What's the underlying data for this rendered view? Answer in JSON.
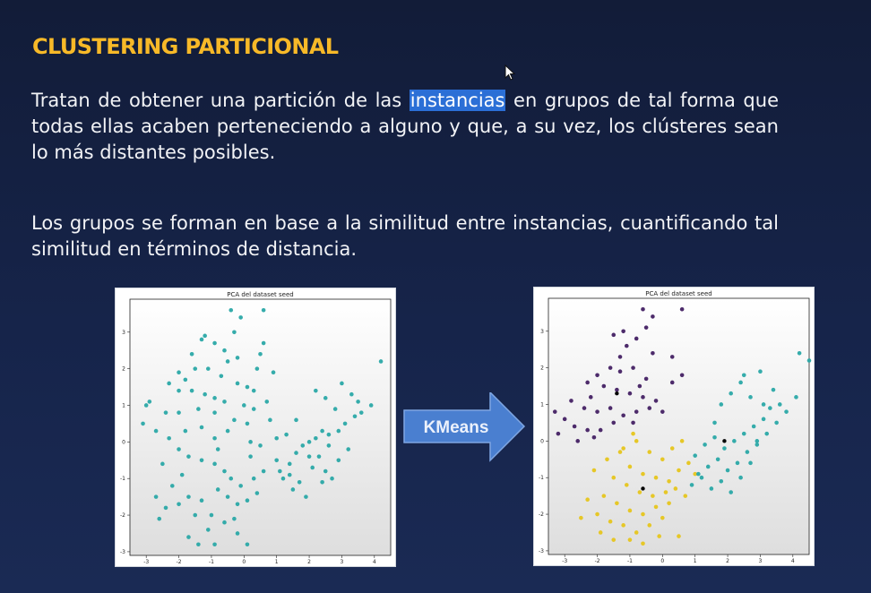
{
  "slide": {
    "title": "CLUSTERING PARTICIONAL",
    "p1_before": "Tratan de obtener una partición de las ",
    "p1_highlight": "instancias",
    "p1_after": " en grupos de tal forma que todas ellas acaben perteneciendo a alguno y que, a su vez, los clústeres sean lo más distantes posibles.",
    "p2": "Los grupos se forman en base a la similitud entre instancias, cuantificando tal similitud en términos de distancia.",
    "arrow_label": "KMeans"
  },
  "colors": {
    "title": "#f7b928",
    "highlight": "#2b6fd6",
    "arrow": "#4a7fd0",
    "teal": "#2aa8a6",
    "purple": "#432063",
    "yellow": "#e6c51c",
    "centroid": "#000000"
  },
  "chart_data": [
    {
      "type": "scatter",
      "title": "PCA del dataset seed",
      "xlim": [
        -3.5,
        4.5
      ],
      "ylim": [
        -3.1,
        3.9
      ],
      "xticks": [
        -3,
        -2,
        -1,
        0,
        1,
        2,
        3,
        4
      ],
      "yticks": [
        -3,
        -2,
        -1,
        0,
        1,
        2,
        3
      ],
      "grid": false,
      "series": [
        {
          "color": "#2aa8a6",
          "points": [
            [
              -0.4,
              3.6
            ],
            [
              0.6,
              3.6
            ],
            [
              -0.1,
              3.4
            ],
            [
              -0.3,
              3.0
            ],
            [
              -1.2,
              2.9
            ],
            [
              -0.9,
              2.7
            ],
            [
              -1.3,
              2.8
            ],
            [
              0.6,
              2.7
            ],
            [
              -0.6,
              2.5
            ],
            [
              -0.5,
              2.2
            ],
            [
              0.4,
              2.0
            ],
            [
              0.9,
              1.9
            ],
            [
              -1.5,
              2.0
            ],
            [
              -2.0,
              1.9
            ],
            [
              -1.8,
              1.7
            ],
            [
              -1.1,
              2.0
            ],
            [
              -0.7,
              1.8
            ],
            [
              -0.2,
              1.6
            ],
            [
              0.1,
              1.5
            ],
            [
              0.3,
              1.4
            ],
            [
              -2.3,
              1.6
            ],
            [
              -2.0,
              1.4
            ],
            [
              -1.6,
              1.4
            ],
            [
              -1.2,
              1.3
            ],
            [
              -0.9,
              1.2
            ],
            [
              -0.6,
              1.1
            ],
            [
              0.0,
              1.0
            ],
            [
              0.3,
              0.9
            ],
            [
              0.7,
              1.1
            ],
            [
              -2.9,
              1.1
            ],
            [
              -3.0,
              1.0
            ],
            [
              -2.4,
              0.8
            ],
            [
              -2.0,
              0.8
            ],
            [
              -1.4,
              0.9
            ],
            [
              -0.9,
              0.8
            ],
            [
              -0.3,
              0.6
            ],
            [
              0.1,
              0.5
            ],
            [
              -3.1,
              0.5
            ],
            [
              -2.7,
              0.3
            ],
            [
              -2.3,
              0.1
            ],
            [
              -1.8,
              0.3
            ],
            [
              -1.3,
              0.4
            ],
            [
              -0.9,
              0.1
            ],
            [
              -0.5,
              0.3
            ],
            [
              0.2,
              0.0
            ],
            [
              0.5,
              -0.1
            ],
            [
              -2.0,
              -0.2
            ],
            [
              -1.7,
              -0.4
            ],
            [
              -1.3,
              -0.5
            ],
            [
              -0.9,
              -0.6
            ],
            [
              -0.6,
              -0.8
            ],
            [
              -0.4,
              -1.0
            ],
            [
              -0.1,
              -1.2
            ],
            [
              0.3,
              -1.0
            ],
            [
              0.6,
              -0.8
            ],
            [
              1.1,
              -0.8
            ],
            [
              1.4,
              -0.6
            ],
            [
              1.6,
              -0.3
            ],
            [
              1.8,
              -0.1
            ],
            [
              2.0,
              0.0
            ],
            [
              2.2,
              0.1
            ],
            [
              2.4,
              0.3
            ],
            [
              2.6,
              0.2
            ],
            [
              2.9,
              0.3
            ],
            [
              3.1,
              0.5
            ],
            [
              3.4,
              0.7
            ],
            [
              3.6,
              0.8
            ],
            [
              3.9,
              1.0
            ],
            [
              4.2,
              2.2
            ],
            [
              1.0,
              -0.5
            ],
            [
              1.2,
              -1.0
            ],
            [
              1.4,
              -0.9
            ],
            [
              1.5,
              -1.3
            ],
            [
              1.7,
              -1.1
            ],
            [
              1.9,
              -1.5
            ],
            [
              2.1,
              -0.7
            ],
            [
              2.3,
              -0.4
            ],
            [
              2.5,
              -0.8
            ],
            [
              2.7,
              -1.0
            ],
            [
              2.9,
              -0.5
            ],
            [
              -0.8,
              -1.3
            ],
            [
              -0.5,
              -1.5
            ],
            [
              -0.2,
              -1.7
            ],
            [
              0.1,
              -1.6
            ],
            [
              0.4,
              -1.4
            ],
            [
              -1.3,
              -1.6
            ],
            [
              -1.7,
              -1.5
            ],
            [
              -2.0,
              -1.7
            ],
            [
              -2.4,
              -1.8
            ],
            [
              -2.7,
              -1.5
            ],
            [
              -1.0,
              -2.0
            ],
            [
              -0.6,
              -2.2
            ],
            [
              -0.3,
              -2.1
            ],
            [
              -1.5,
              -2.0
            ],
            [
              -1.1,
              -2.4
            ],
            [
              -1.7,
              -2.6
            ],
            [
              -0.9,
              -2.8
            ],
            [
              0.1,
              -2.8
            ],
            [
              -1.4,
              -2.8
            ],
            [
              -0.2,
              -2.5
            ],
            [
              2.2,
              1.4
            ],
            [
              2.5,
              1.2
            ],
            [
              3.3,
              1.3
            ],
            [
              3.0,
              1.6
            ],
            [
              3.5,
              1.1
            ],
            [
              2.8,
              0.9
            ],
            [
              3.2,
              -0.2
            ],
            [
              2.0,
              -0.4
            ],
            [
              1.3,
              0.2
            ],
            [
              1.6,
              0.6
            ],
            [
              -2.6,
              -2.1
            ],
            [
              -2.2,
              -1.2
            ],
            [
              -1.9,
              -0.9
            ],
            [
              -2.5,
              -0.6
            ],
            [
              -0.8,
              -0.2
            ],
            [
              0.8,
              0.6
            ],
            [
              0.2,
              -0.4
            ],
            [
              1.0,
              0.1
            ],
            [
              2.4,
              -1.1
            ],
            [
              2.6,
              -0.1
            ],
            [
              -0.2,
              2.3
            ],
            [
              0.5,
              2.4
            ],
            [
              -1.6,
              2.4
            ]
          ]
        }
      ]
    },
    {
      "type": "scatter",
      "title": "PCA del dataset seed",
      "xlim": [
        -3.5,
        4.5
      ],
      "ylim": [
        -3.1,
        3.9
      ],
      "xticks": [
        -3,
        -2,
        -1,
        0,
        1,
        2,
        3,
        4
      ],
      "yticks": [
        -3,
        -2,
        -1,
        0,
        1,
        2,
        3
      ],
      "grid": false,
      "series": [
        {
          "color": "#432063",
          "points": [
            [
              -0.6,
              3.6
            ],
            [
              0.6,
              3.6
            ],
            [
              -0.3,
              3.4
            ],
            [
              -0.5,
              3.1
            ],
            [
              -1.5,
              2.9
            ],
            [
              -1.2,
              3.0
            ],
            [
              -0.8,
              2.8
            ],
            [
              -1.1,
              2.6
            ],
            [
              -0.3,
              2.4
            ],
            [
              0.3,
              2.3
            ],
            [
              -1.6,
              2.0
            ],
            [
              -2.0,
              1.8
            ],
            [
              -1.3,
              1.9
            ],
            [
              -0.9,
              2.0
            ],
            [
              -0.5,
              1.7
            ],
            [
              -2.3,
              1.6
            ],
            [
              -1.8,
              1.5
            ],
            [
              -1.4,
              1.4
            ],
            [
              -1.0,
              1.3
            ],
            [
              -0.6,
              1.2
            ],
            [
              -0.2,
              1.1
            ],
            [
              -2.8,
              1.1
            ],
            [
              -2.4,
              0.9
            ],
            [
              -2.0,
              0.8
            ],
            [
              -1.6,
              0.9
            ],
            [
              -1.2,
              0.7
            ],
            [
              -0.8,
              0.8
            ],
            [
              -0.4,
              0.9
            ],
            [
              0.0,
              0.8
            ],
            [
              -3.3,
              0.8
            ],
            [
              -3.0,
              0.6
            ],
            [
              -2.7,
              0.4
            ],
            [
              -2.3,
              0.3
            ],
            [
              -1.9,
              0.3
            ],
            [
              -1.5,
              0.5
            ],
            [
              -3.2,
              0.2
            ],
            [
              -2.6,
              0.0
            ],
            [
              -2.1,
              0.1
            ],
            [
              -0.7,
              1.5
            ],
            [
              0.3,
              1.6
            ],
            [
              -1.3,
              2.3
            ],
            [
              -2.2,
              1.2
            ],
            [
              -0.9,
              0.5
            ],
            [
              0.6,
              1.8
            ]
          ],
          "centroid": [
            -1.4,
            1.3
          ]
        },
        {
          "color": "#e6c51c",
          "points": [
            [
              -1.2,
              -0.2
            ],
            [
              -0.8,
              0.0
            ],
            [
              -0.4,
              -0.3
            ],
            [
              0.0,
              -0.5
            ],
            [
              0.3,
              -0.2
            ],
            [
              0.6,
              0.0
            ],
            [
              -1.0,
              -0.7
            ],
            [
              -0.6,
              -0.9
            ],
            [
              -0.2,
              -1.0
            ],
            [
              0.2,
              -1.1
            ],
            [
              0.5,
              -0.8
            ],
            [
              0.8,
              -0.6
            ],
            [
              -1.5,
              -1.0
            ],
            [
              -1.1,
              -1.2
            ],
            [
              -0.7,
              -1.4
            ],
            [
              -0.3,
              -1.5
            ],
            [
              0.1,
              -1.4
            ],
            [
              0.4,
              -1.3
            ],
            [
              -1.8,
              -1.5
            ],
            [
              -1.4,
              -1.7
            ],
            [
              -1.0,
              -1.9
            ],
            [
              -0.6,
              -2.0
            ],
            [
              -0.2,
              -1.8
            ],
            [
              0.2,
              -1.7
            ],
            [
              -2.3,
              -1.6
            ],
            [
              -2.0,
              -2.0
            ],
            [
              -1.6,
              -2.2
            ],
            [
              -1.2,
              -2.3
            ],
            [
              -0.8,
              -2.5
            ],
            [
              -0.4,
              -2.3
            ],
            [
              0.0,
              -2.1
            ],
            [
              -2.5,
              -2.1
            ],
            [
              -1.9,
              -2.5
            ],
            [
              -1.5,
              -2.7
            ],
            [
              -1.0,
              -2.7
            ],
            [
              -0.6,
              -2.8
            ],
            [
              -0.1,
              -2.6
            ],
            [
              0.5,
              -2.6
            ],
            [
              -2.1,
              -0.8
            ],
            [
              -1.7,
              -0.5
            ],
            [
              -1.3,
              -0.3
            ],
            [
              1.0,
              -0.9
            ],
            [
              0.7,
              -1.5
            ],
            [
              -0.9,
              0.2
            ]
          ],
          "centroid": [
            -0.6,
            -1.3
          ]
        },
        {
          "color": "#2aa8a6",
          "points": [
            [
              1.0,
              -0.4
            ],
            [
              1.3,
              -0.1
            ],
            [
              1.6,
              0.1
            ],
            [
              1.9,
              -0.2
            ],
            [
              2.2,
              0.0
            ],
            [
              2.5,
              0.2
            ],
            [
              2.8,
              0.4
            ],
            [
              3.1,
              0.6
            ],
            [
              1.4,
              -0.7
            ],
            [
              1.7,
              -0.5
            ],
            [
              2.0,
              -0.8
            ],
            [
              2.3,
              -0.6
            ],
            [
              2.6,
              -0.3
            ],
            [
              2.9,
              -0.1
            ],
            [
              3.2,
              0.2
            ],
            [
              3.5,
              0.5
            ],
            [
              3.8,
              0.8
            ],
            [
              4.1,
              1.2
            ],
            [
              4.2,
              2.4
            ],
            [
              4.5,
              2.2
            ],
            [
              3.4,
              1.4
            ],
            [
              3.1,
              1.0
            ],
            [
              2.7,
              1.2
            ],
            [
              2.4,
              1.6
            ],
            [
              2.1,
              1.3
            ],
            [
              1.8,
              1.0
            ],
            [
              1.2,
              -1.0
            ],
            [
              1.5,
              -1.3
            ],
            [
              1.8,
              -1.1
            ],
            [
              2.1,
              -1.4
            ],
            [
              1.1,
              -0.9
            ],
            [
              0.9,
              -1.2
            ],
            [
              2.4,
              -1.0
            ],
            [
              2.7,
              -0.6
            ],
            [
              3.3,
              0.9
            ],
            [
              2.5,
              1.8
            ],
            [
              3.0,
              1.9
            ],
            [
              1.6,
              0.5
            ],
            [
              2.9,
              0.0
            ],
            [
              3.6,
              1.0
            ]
          ],
          "centroid": [
            1.9,
            0.0
          ]
        }
      ]
    }
  ]
}
